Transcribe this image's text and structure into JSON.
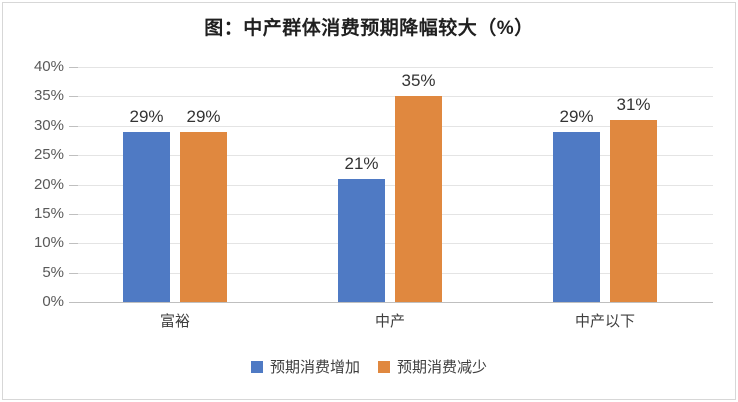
{
  "title": "图：中产群体消费预期降幅较大（%）",
  "chart_data": {
    "type": "bar",
    "title": "图：中产群体消费预期降幅较大（%）",
    "categories": [
      "富裕",
      "中产",
      "中产以下"
    ],
    "series": [
      {
        "name": "预期消费增加",
        "color": "#4F7AC4",
        "values": [
          29,
          21,
          29
        ]
      },
      {
        "name": "预期消费减少",
        "color": "#E0883F",
        "values": [
          29,
          35,
          31
        ]
      }
    ],
    "data_labels": [
      [
        "29%",
        "21%",
        "29%"
      ],
      [
        "29%",
        "35%",
        "31%"
      ]
    ],
    "ylim": [
      0,
      40
    ],
    "ytick_step": 5,
    "ytick_labels": [
      "0%",
      "5%",
      "10%",
      "15%",
      "20%",
      "25%",
      "30%",
      "35%",
      "40%"
    ],
    "grid": true,
    "legend_position": "bottom"
  },
  "colors": {
    "series_increase": "#4F7AC4",
    "series_decrease": "#E0883F",
    "gridline": "#E4E4E4",
    "axis_line": "#BFBFBF",
    "ytick_label": "#595959",
    "category_label": "#3F3F3F",
    "data_label": "#333333",
    "title": "#202020",
    "frame_border": "#D7D7D7",
    "background": "#FFFFFF"
  }
}
